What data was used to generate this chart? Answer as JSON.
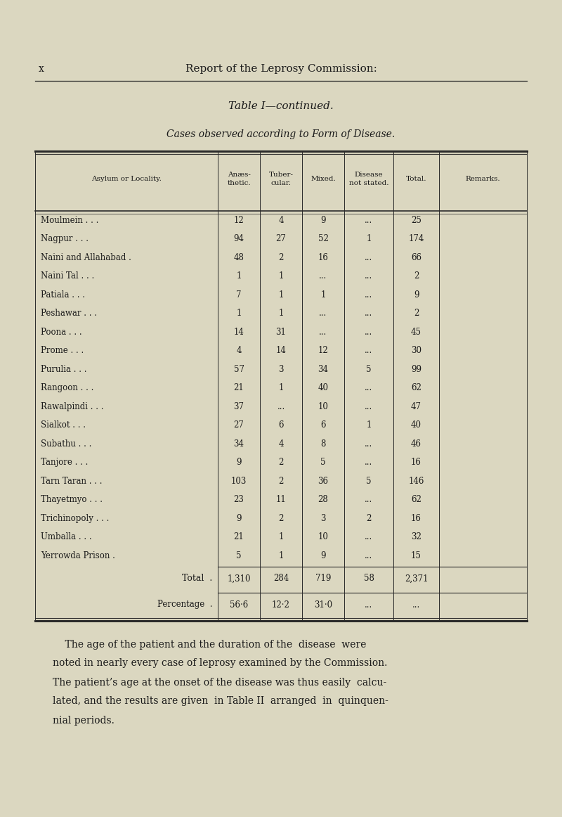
{
  "page_number": "x",
  "header": "Report of the Leprosy Commission:",
  "table_title": "Table I—",
  "table_title_italic": "continued.",
  "table_subtitle": "Cases observed according to Form of Disease.",
  "col_headers": [
    "Asylum or Locality.",
    "Anæs-\nthetic.",
    "Tuber-\ncular.",
    "Mixed.",
    "Disease\nnot stated.",
    "Total.",
    "Remarks."
  ],
  "rows": [
    [
      "Moulmein",
      "12",
      "4",
      "9",
      "...",
      "25",
      ""
    ],
    [
      "Nagpur",
      "94",
      "27",
      "52",
      "1",
      "174",
      ""
    ],
    [
      "Naini and Allahabad",
      "48",
      "2",
      "16",
      "...",
      "66",
      ""
    ],
    [
      "Naini Tal",
      "1",
      "1",
      "...",
      "...",
      "2",
      ""
    ],
    [
      "Patiala",
      "7",
      "1",
      "1",
      "...",
      "9",
      ""
    ],
    [
      "Peshawar",
      "1",
      "1",
      "...",
      "...",
      "2",
      ""
    ],
    [
      "Poona",
      "14",
      "31",
      "...",
      "...",
      "45",
      ""
    ],
    [
      "Prome",
      "4",
      "14",
      "12",
      "...",
      "30",
      ""
    ],
    [
      "Purulia",
      "57",
      "3",
      "34",
      "5",
      "99",
      ""
    ],
    [
      "Rangoon",
      "21",
      "1",
      "40",
      "...",
      "62",
      ""
    ],
    [
      "Rawalpindi",
      "37",
      "...",
      "10",
      "...",
      "47",
      ""
    ],
    [
      "Sialkot",
      "27",
      "6",
      "6",
      "1",
      "40",
      ""
    ],
    [
      "Subathu",
      "34",
      "4",
      "8",
      "...",
      "46",
      ""
    ],
    [
      "Tanjore",
      "9",
      "2",
      "5",
      "...",
      "16",
      ""
    ],
    [
      "Tarn Taran",
      "103",
      "2",
      "36",
      "5",
      "146",
      ""
    ],
    [
      "Thayetmyo",
      "23",
      "11",
      "28",
      "...",
      "62",
      ""
    ],
    [
      "Trichinopoly",
      "9",
      "2",
      "3",
      "2",
      "16",
      ""
    ],
    [
      "Umballa",
      "21",
      "1",
      "10",
      "...",
      "32",
      ""
    ],
    [
      "Yerrowda Prison",
      "5",
      "1",
      "9",
      "...",
      "15",
      ""
    ]
  ],
  "total_row": [
    "Total",
    "1,310",
    "284",
    "719",
    "58",
    "2,371",
    ""
  ],
  "percentage_row": [
    "Percentage",
    "56·6",
    "12·2",
    "31·0",
    "...",
    "...",
    ""
  ],
  "para_lines": [
    "    The age of the patient and the duration of the  disease  were",
    "noted in nearly every case of leprosy examined by the Commission.",
    "The patient’s age at the onset of the disease was thus easily  calcu-",
    "lated, and the results are given  in Table II  arranged  in  quinquen-",
    "nial periods."
  ],
  "bg_color": "#dbd7c0",
  "text_color": "#1a1a1a",
  "line_color": "#2a2a2a"
}
